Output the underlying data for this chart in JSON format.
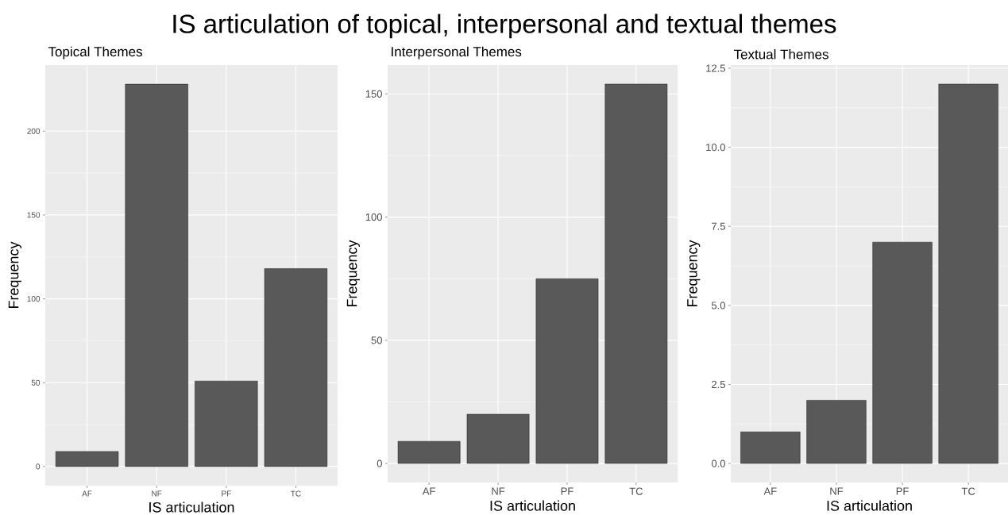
{
  "chart_data": [
    {
      "type": "bar",
      "title": "IS articulation of topical, interpersonal and textual themes",
      "subtitle": "Topical Themes",
      "xlabel": "IS articulation",
      "ylabel": "Frequency",
      "categories": [
        "AF",
        "NF",
        "PF",
        "TC"
      ],
      "values": [
        9,
        228,
        51,
        118
      ],
      "color": "#595959",
      "ylim": [
        -11.4,
        239.4
      ],
      "yticks": [
        0,
        50,
        100,
        150,
        200
      ],
      "grid": true
    },
    {
      "type": "bar",
      "subtitle": "Interpersonal Themes",
      "xlabel": "IS articulation",
      "ylabel": "Frequency",
      "categories": [
        "AF",
        "NF",
        "PF",
        "TC"
      ],
      "values": [
        9,
        20,
        75,
        154
      ],
      "color": "#595959",
      "ylim": [
        -7.7,
        161.7
      ],
      "yticks": [
        0,
        50,
        100,
        150
      ],
      "grid": true
    },
    {
      "type": "bar",
      "subtitle": "Textual Themes",
      "xlabel": "IS articulation",
      "ylabel": "Frequency",
      "categories": [
        "AF",
        "NF",
        "PF",
        "TC"
      ],
      "values": [
        1,
        2,
        7,
        12
      ],
      "color": "#595959",
      "ylim": [
        -0.6,
        12.6
      ],
      "yticks": [
        {
          "value": 0,
          "label": "0.0"
        },
        2.5,
        {
          "value": 5,
          "label": "5.0"
        },
        7.5,
        {
          "value": 10,
          "label": "10.0"
        },
        12.5
      ],
      "grid": true
    }
  ]
}
